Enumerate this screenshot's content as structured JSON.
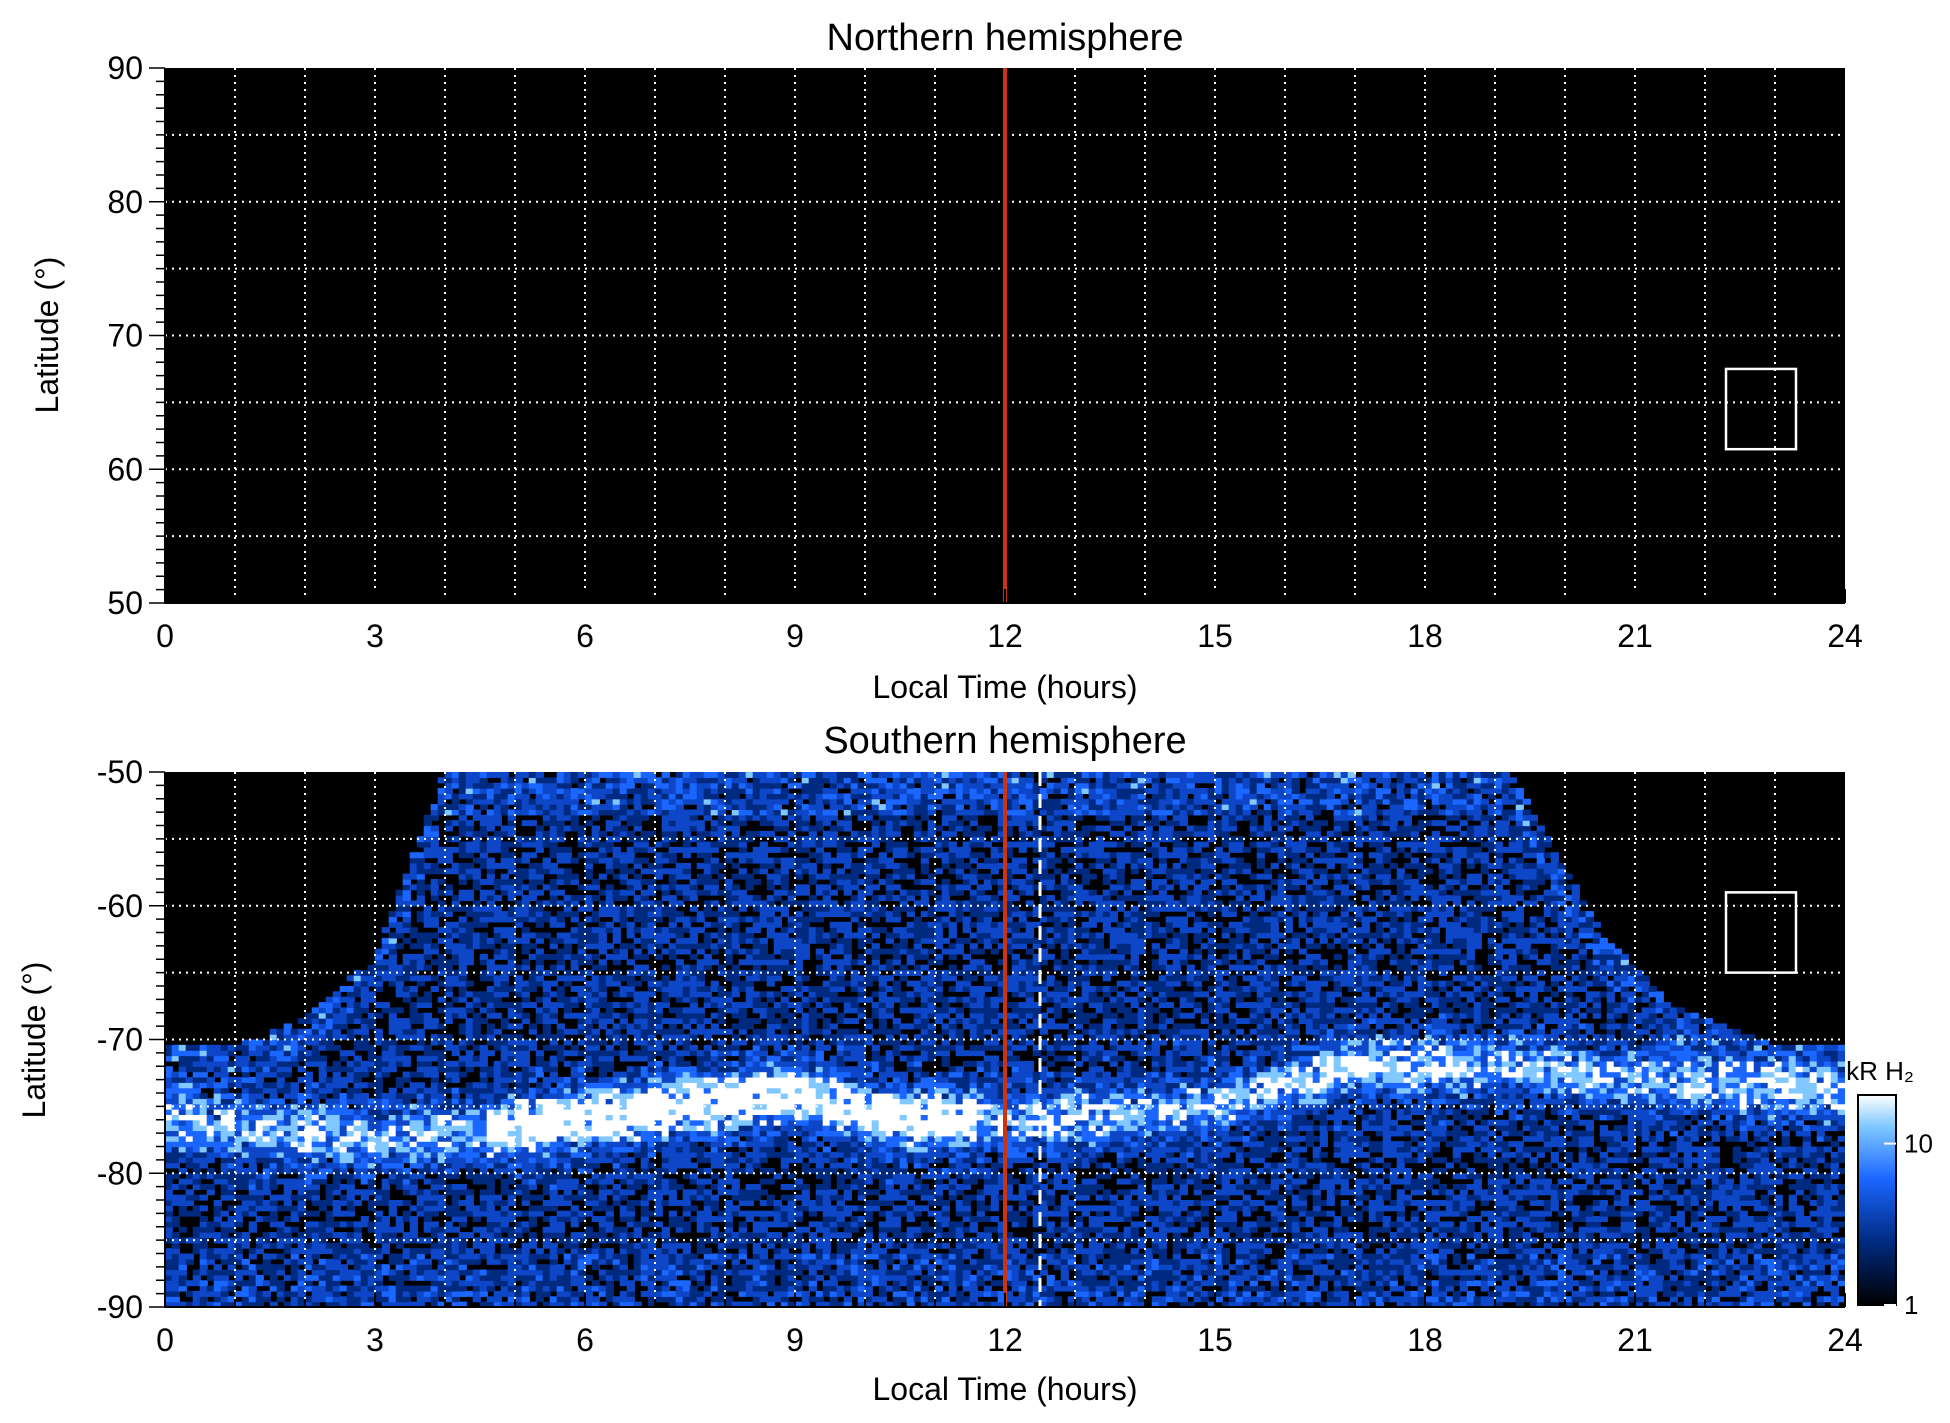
{
  "chart_data": [
    {
      "type": "heatmap",
      "title": "Northern hemisphere",
      "xlabel": "Local Time (hours)",
      "ylabel": "Latitude (°)",
      "xlim": [
        0,
        24
      ],
      "ylim": [
        50,
        90
      ],
      "xticks": [
        0,
        3,
        6,
        9,
        12,
        15,
        18,
        21,
        24
      ],
      "yticks": [
        50,
        60,
        70,
        80,
        90
      ],
      "grid": true,
      "noon_line": {
        "x": 12,
        "color": "#cc3311"
      },
      "box": {
        "x": [
          22.3,
          23.3
        ],
        "y": [
          61.5,
          67.5
        ]
      },
      "emission": "none"
    },
    {
      "type": "heatmap",
      "title": "Southern hemisphere",
      "xlabel": "Local Time (hours)",
      "ylabel": "Latitude (°)",
      "xlim": [
        0,
        24
      ],
      "ylim": [
        -90,
        -50
      ],
      "xticks": [
        0,
        3,
        6,
        9,
        12,
        15,
        18,
        21,
        24
      ],
      "yticks": [
        -90,
        -80,
        -70,
        -60,
        -50
      ],
      "grid": true,
      "noon_line": {
        "x": 12,
        "color": "#cc3311"
      },
      "dashed_line": {
        "x": 12.5,
        "y_range": [
          -90,
          -50
        ]
      },
      "box": {
        "x": [
          22.3,
          23.3
        ],
        "y": [
          -65,
          -59
        ]
      },
      "coverage_boundary": [
        [
          0,
          -70.5
        ],
        [
          1,
          -70.5
        ],
        [
          2,
          -68.5
        ],
        [
          3,
          -64
        ],
        [
          4,
          -50
        ],
        [
          19.2,
          -50
        ],
        [
          20.5,
          -62
        ],
        [
          21.5,
          -67.5
        ],
        [
          23,
          -70.5
        ],
        [
          24,
          -70.5
        ]
      ],
      "auroral_oval": [
        [
          0,
          -76
        ],
        [
          3,
          -77.5
        ],
        [
          6,
          -76
        ],
        [
          8,
          -74.5
        ],
        [
          9,
          -74
        ],
        [
          10.5,
          -76
        ],
        [
          12,
          -76
        ],
        [
          15,
          -75
        ],
        [
          17,
          -72
        ],
        [
          19,
          -72
        ],
        [
          21,
          -73
        ],
        [
          24,
          -74
        ]
      ],
      "colorbar": {
        "label": "kR H₂",
        "scale": "log",
        "range": [
          1,
          20
        ],
        "ticks": [
          1,
          10
        ],
        "colors": [
          "#000000",
          "#002a80",
          "#1a66ff",
          "#80c8ff",
          "#ffffff"
        ]
      }
    }
  ]
}
